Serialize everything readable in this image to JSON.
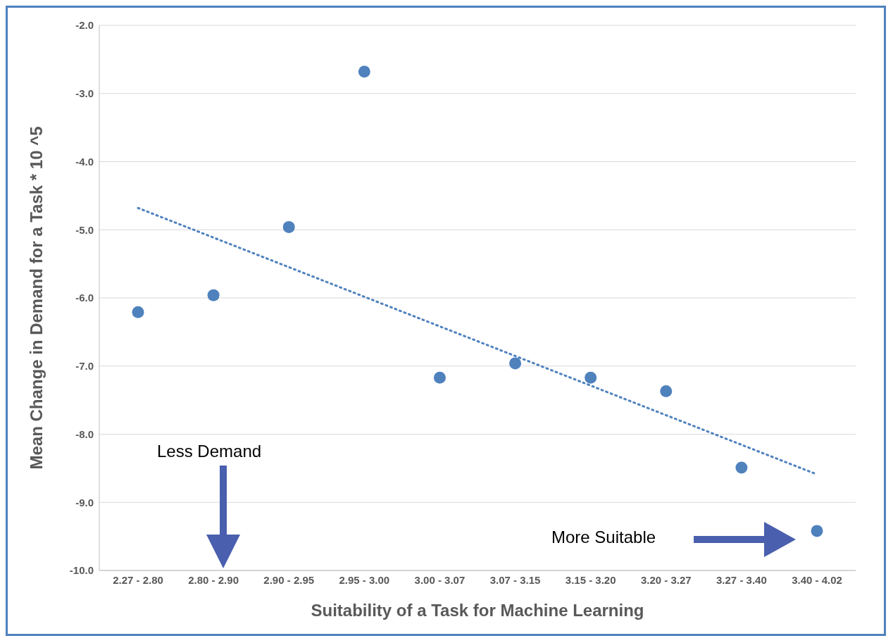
{
  "chart_data": {
    "type": "scatter",
    "xlabel": "Suitability of a Task for Machine Learning",
    "ylabel": "Mean Change in Demand for a Task * 10 ^5",
    "categories": [
      "2.27 - 2.80",
      "2.80 - 2.90",
      "2.90 - 2.95",
      "2.95 - 3.00",
      "3.00 - 3.07",
      "3.07 - 3.15",
      "3.15 - 3.20",
      "3.20 - 3.27",
      "3.27 - 3.40",
      "3.40 - 4.02"
    ],
    "series": [
      {
        "color": "#4f81bd",
        "marker": "circle",
        "values": [
          -6.21,
          -5.96,
          -4.96,
          -2.68,
          -7.17,
          -6.96,
          -7.17,
          -7.37,
          -8.49,
          -9.42
        ]
      },
      {
        "type": "line",
        "color": "#4f81bd",
        "line_style": "dotted",
        "x": [
          "2.27 - 2.80",
          "3.40 - 4.02"
        ],
        "values": [
          -4.68,
          -8.59
        ]
      }
    ],
    "ylim": [
      -10,
      -2
    ],
    "yticks": [
      {
        "value": -10,
        "label": "-10.0"
      },
      {
        "value": -9,
        "label": "-9.0"
      },
      {
        "value": -8,
        "label": "-8.0"
      },
      {
        "value": -7,
        "label": "-7.0"
      },
      {
        "value": -6,
        "label": "-6.0"
      },
      {
        "value": -5,
        "label": "-5.0"
      },
      {
        "value": -4,
        "label": "-4.0"
      },
      {
        "value": -3,
        "label": "-3.0"
      },
      {
        "value": -2,
        "label": "-2.0"
      }
    ],
    "grid": "y",
    "annotations": [
      "Less Demand",
      "More Suitable"
    ]
  }
}
